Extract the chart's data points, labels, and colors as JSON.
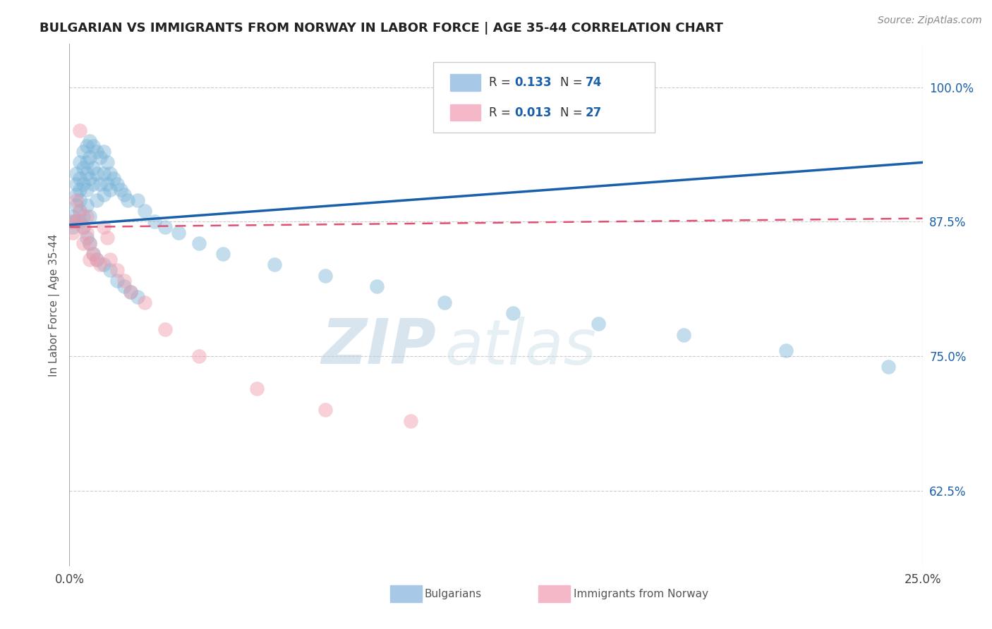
{
  "title": "BULGARIAN VS IMMIGRANTS FROM NORWAY IN LABOR FORCE | AGE 35-44 CORRELATION CHART",
  "source": "Source: ZipAtlas.com",
  "ylabel": "In Labor Force | Age 35-44",
  "xlim": [
    0.0,
    0.25
  ],
  "ylim": [
    0.555,
    1.04
  ],
  "ytick_positions": [
    0.625,
    0.75,
    0.875,
    1.0
  ],
  "ytick_labels": [
    "62.5%",
    "75.0%",
    "87.5%",
    "100.0%"
  ],
  "blue_R": "0.133",
  "blue_N": "74",
  "pink_R": "0.013",
  "pink_N": "27",
  "blue_scatter_x": [
    0.001,
    0.001,
    0.001,
    0.002,
    0.002,
    0.002,
    0.002,
    0.002,
    0.003,
    0.003,
    0.003,
    0.003,
    0.003,
    0.004,
    0.004,
    0.004,
    0.004,
    0.005,
    0.005,
    0.005,
    0.005,
    0.005,
    0.006,
    0.006,
    0.006,
    0.006,
    0.007,
    0.007,
    0.007,
    0.008,
    0.008,
    0.008,
    0.009,
    0.009,
    0.01,
    0.01,
    0.01,
    0.011,
    0.011,
    0.012,
    0.012,
    0.013,
    0.014,
    0.015,
    0.016,
    0.017,
    0.02,
    0.022,
    0.025,
    0.028,
    0.032,
    0.038,
    0.045,
    0.06,
    0.075,
    0.09,
    0.11,
    0.13,
    0.155,
    0.18,
    0.21,
    0.24,
    0.003,
    0.004,
    0.005,
    0.006,
    0.007,
    0.008,
    0.01,
    0.012,
    0.014,
    0.016,
    0.018,
    0.02
  ],
  "blue_scatter_y": [
    0.875,
    0.88,
    0.87,
    0.92,
    0.91,
    0.9,
    0.89,
    0.875,
    0.93,
    0.915,
    0.905,
    0.895,
    0.885,
    0.94,
    0.925,
    0.91,
    0.88,
    0.945,
    0.93,
    0.92,
    0.905,
    0.89,
    0.95,
    0.935,
    0.915,
    0.88,
    0.945,
    0.925,
    0.91,
    0.94,
    0.92,
    0.895,
    0.935,
    0.91,
    0.94,
    0.92,
    0.9,
    0.93,
    0.91,
    0.92,
    0.905,
    0.915,
    0.91,
    0.905,
    0.9,
    0.895,
    0.895,
    0.885,
    0.875,
    0.87,
    0.865,
    0.855,
    0.845,
    0.835,
    0.825,
    0.815,
    0.8,
    0.79,
    0.78,
    0.77,
    0.755,
    0.74,
    0.875,
    0.87,
    0.86,
    0.855,
    0.845,
    0.84,
    0.835,
    0.83,
    0.82,
    0.815,
    0.81,
    0.805
  ],
  "pink_scatter_x": [
    0.001,
    0.001,
    0.002,
    0.002,
    0.003,
    0.003,
    0.004,
    0.004,
    0.005,
    0.005,
    0.006,
    0.006,
    0.007,
    0.008,
    0.009,
    0.01,
    0.011,
    0.012,
    0.014,
    0.016,
    0.018,
    0.022,
    0.028,
    0.038,
    0.055,
    0.075,
    0.1
  ],
  "pink_scatter_y": [
    0.875,
    0.865,
    0.895,
    0.875,
    0.96,
    0.885,
    0.87,
    0.855,
    0.88,
    0.865,
    0.855,
    0.84,
    0.845,
    0.84,
    0.835,
    0.87,
    0.86,
    0.84,
    0.83,
    0.82,
    0.81,
    0.8,
    0.775,
    0.75,
    0.72,
    0.7,
    0.69
  ],
  "blue_line_x": [
    0.0,
    0.25
  ],
  "blue_line_y": [
    0.872,
    0.93
  ],
  "pink_line_x": [
    0.0,
    0.25
  ],
  "pink_line_y": [
    0.87,
    0.878
  ],
  "title_color": "#222222",
  "blue_scatter_color": "#7ab4d8",
  "pink_scatter_color": "#f09aaa",
  "blue_line_color": "#1a5faa",
  "pink_line_color": "#e05070",
  "blue_legend_color": "#a8c8e8",
  "pink_legend_color": "#f4b8c8",
  "label_color": "#1a5faa",
  "watermark_color": "#c8d8e8",
  "background_color": "#ffffff",
  "grid_color": "#cccccc"
}
